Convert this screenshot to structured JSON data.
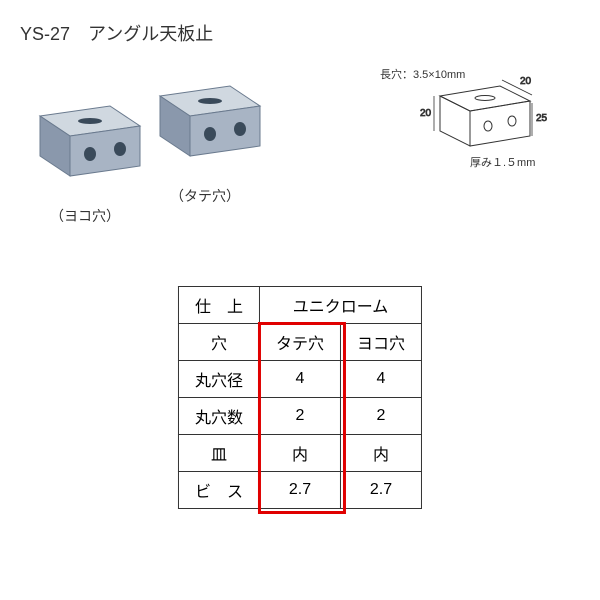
{
  "product": {
    "code": "YS-27",
    "name": "アングル天板止"
  },
  "bracket_labels": {
    "left": "（ヨコ穴）",
    "right": "（タテ穴）"
  },
  "diagram": {
    "slot_label": "長穴：3.5×10mm",
    "width_top": "20",
    "depth": "25",
    "height": "20",
    "thickness_label": "厚み１.５mm"
  },
  "table": {
    "rows": [
      {
        "header": "仕　上",
        "cells": [
          "ユニクローム"
        ],
        "colspan": 2
      },
      {
        "header": "穴",
        "cells": [
          "タテ穴",
          "ヨコ穴"
        ]
      },
      {
        "header": "丸穴径",
        "cells": [
          "4",
          "4"
        ]
      },
      {
        "header": "丸穴数",
        "cells": [
          "2",
          "2"
        ]
      },
      {
        "header": "皿",
        "cells": [
          "内",
          "内"
        ]
      },
      {
        "header": "ビ　ス",
        "cells": [
          "2.7",
          "2.7"
        ]
      }
    ],
    "highlight_column": 0
  },
  "colors": {
    "bracket_light": "#d0d8e0",
    "bracket_mid": "#a8b4c4",
    "bracket_dark": "#6a7a8e",
    "bracket_hole": "#3a4a5a",
    "highlight": "#e00000",
    "text": "#333333",
    "line": "#333333"
  }
}
